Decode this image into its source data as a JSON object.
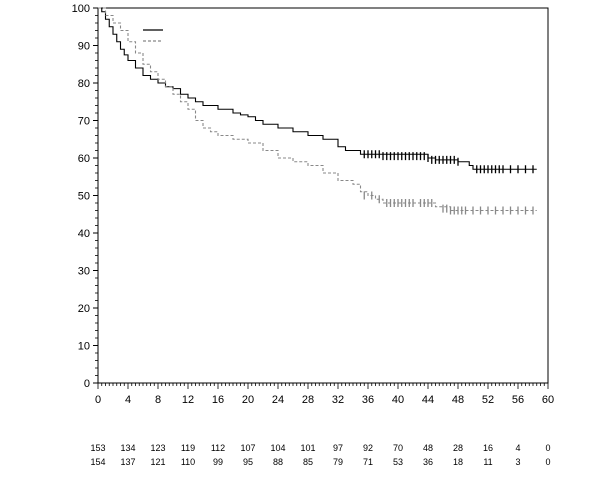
{
  "chart_data": {
    "type": "line",
    "subtype": "kaplan-meier",
    "title": "",
    "xlabel": "",
    "ylabel": "",
    "xlim": [
      0,
      60
    ],
    "ylim": [
      0,
      100
    ],
    "x_ticks": [
      0,
      4,
      8,
      12,
      16,
      20,
      24,
      28,
      32,
      36,
      40,
      44,
      48,
      52,
      56,
      60
    ],
    "y_ticks": [
      0,
      10,
      20,
      30,
      40,
      50,
      60,
      70,
      80,
      90,
      100
    ],
    "grid": false,
    "legend": "top-left",
    "series": [
      {
        "style": "solid",
        "color": "#000000",
        "x": [
          0,
          0.5,
          1,
          1.5,
          2,
          2.5,
          3,
          3.5,
          4,
          5,
          6,
          7,
          8,
          9,
          10,
          11,
          12,
          13,
          14,
          16,
          18,
          19,
          20,
          21,
          22,
          24,
          26,
          28,
          30,
          32,
          33,
          35,
          44,
          45,
          48,
          49.5,
          50,
          58.5
        ],
        "y": [
          100,
          99,
          97,
          95,
          93,
          91,
          89,
          87.5,
          86,
          84,
          82,
          81,
          80,
          79,
          78.5,
          77,
          76,
          75,
          74,
          73,
          72,
          71.5,
          71,
          70,
          69,
          68,
          67,
          66,
          65,
          63,
          62,
          61,
          60,
          59.5,
          59,
          58,
          57,
          57
        ],
        "censor_x": [
          35.5,
          36,
          36.5,
          37,
          37.5,
          38,
          38.5,
          39,
          39.5,
          40,
          40.5,
          41,
          41.5,
          42,
          42.5,
          43,
          43.5,
          44,
          44.5,
          45,
          45.5,
          46,
          46.5,
          47,
          47.5,
          48,
          50.5,
          51,
          51.5,
          52,
          52.5,
          53,
          53.5,
          54,
          55,
          56,
          57,
          58
        ],
        "censor_y": [
          61,
          61,
          61,
          61,
          61,
          60.5,
          60.5,
          60.5,
          60.5,
          60.5,
          60.5,
          60.5,
          60.5,
          60.5,
          60.5,
          60.5,
          60.5,
          60,
          59.5,
          59.5,
          59.5,
          59.5,
          59.5,
          59.5,
          59.5,
          59,
          57,
          57,
          57,
          57,
          57,
          57,
          57,
          57,
          57,
          57,
          57,
          57
        ]
      },
      {
        "style": "dashed",
        "color": "#888888",
        "x": [
          0,
          1,
          2,
          3,
          4,
          5,
          6,
          7,
          8,
          9,
          10,
          11,
          12,
          13,
          14,
          15,
          16,
          18,
          20,
          22,
          24,
          26,
          28,
          30,
          32,
          34,
          35,
          36,
          37,
          38,
          44,
          45,
          47,
          58.5
        ],
        "y": [
          100,
          98,
          96,
          94,
          91,
          88,
          85,
          83,
          81,
          79,
          77,
          75,
          73,
          70,
          68,
          67,
          66,
          65,
          64,
          62,
          60,
          59,
          58,
          56,
          54,
          53,
          51,
          50,
          49,
          48,
          48,
          47,
          46,
          46
        ],
        "censor_x": [
          35.5,
          36.5,
          37.5,
          38.5,
          39,
          39.5,
          40,
          40.5,
          41,
          41.5,
          42,
          43,
          43.5,
          44,
          44.5,
          46,
          46.5,
          47,
          47.5,
          48,
          48.5,
          49,
          50,
          51,
          52,
          53,
          54,
          55,
          56,
          57,
          58
        ],
        "censor_y": [
          50,
          50,
          49,
          48,
          48,
          48,
          48,
          48,
          48,
          48,
          48,
          48,
          48,
          48,
          48,
          46.5,
          46.5,
          46,
          46,
          46,
          46,
          46,
          46,
          46,
          46,
          46,
          46,
          46,
          46,
          46,
          46
        ]
      }
    ],
    "risk_table": {
      "times": [
        0,
        4,
        8,
        12,
        16,
        20,
        24,
        28,
        32,
        36,
        40,
        44,
        48,
        52,
        56,
        60
      ],
      "rows": [
        [
          "153",
          "134",
          "123",
          "119",
          "112",
          "107",
          "104",
          "101",
          "97",
          "92",
          "70",
          "48",
          "28",
          "16",
          "4",
          "0"
        ],
        [
          "154",
          "137",
          "121",
          "110",
          "99",
          "95",
          "88",
          "85",
          "79",
          "71",
          "53",
          "36",
          "18",
          "11",
          "3",
          "0"
        ]
      ]
    }
  }
}
